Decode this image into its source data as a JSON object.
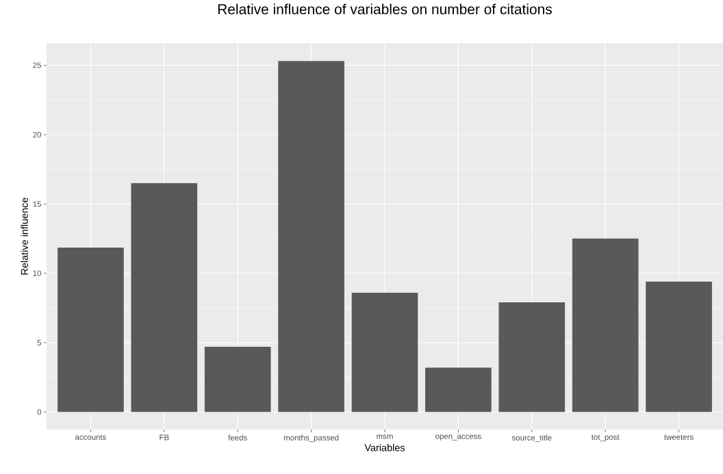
{
  "chart_data": {
    "type": "bar",
    "title": "Relative influence of variables on number of citations",
    "xlabel": "Variables",
    "ylabel": "Relative influence",
    "categories": [
      "accounts",
      "FB",
      "feeds",
      "months_passed",
      "msm",
      "open_access",
      "source_title",
      "tot_post",
      "tweeters"
    ],
    "values": [
      11.85,
      16.5,
      4.7,
      25.3,
      8.6,
      3.2,
      7.9,
      12.5,
      9.4
    ],
    "color": "#595959",
    "ylim": [
      -1.27,
      26.6
    ],
    "yticks": [
      0,
      5,
      10,
      15,
      20,
      25
    ],
    "grid": true
  }
}
